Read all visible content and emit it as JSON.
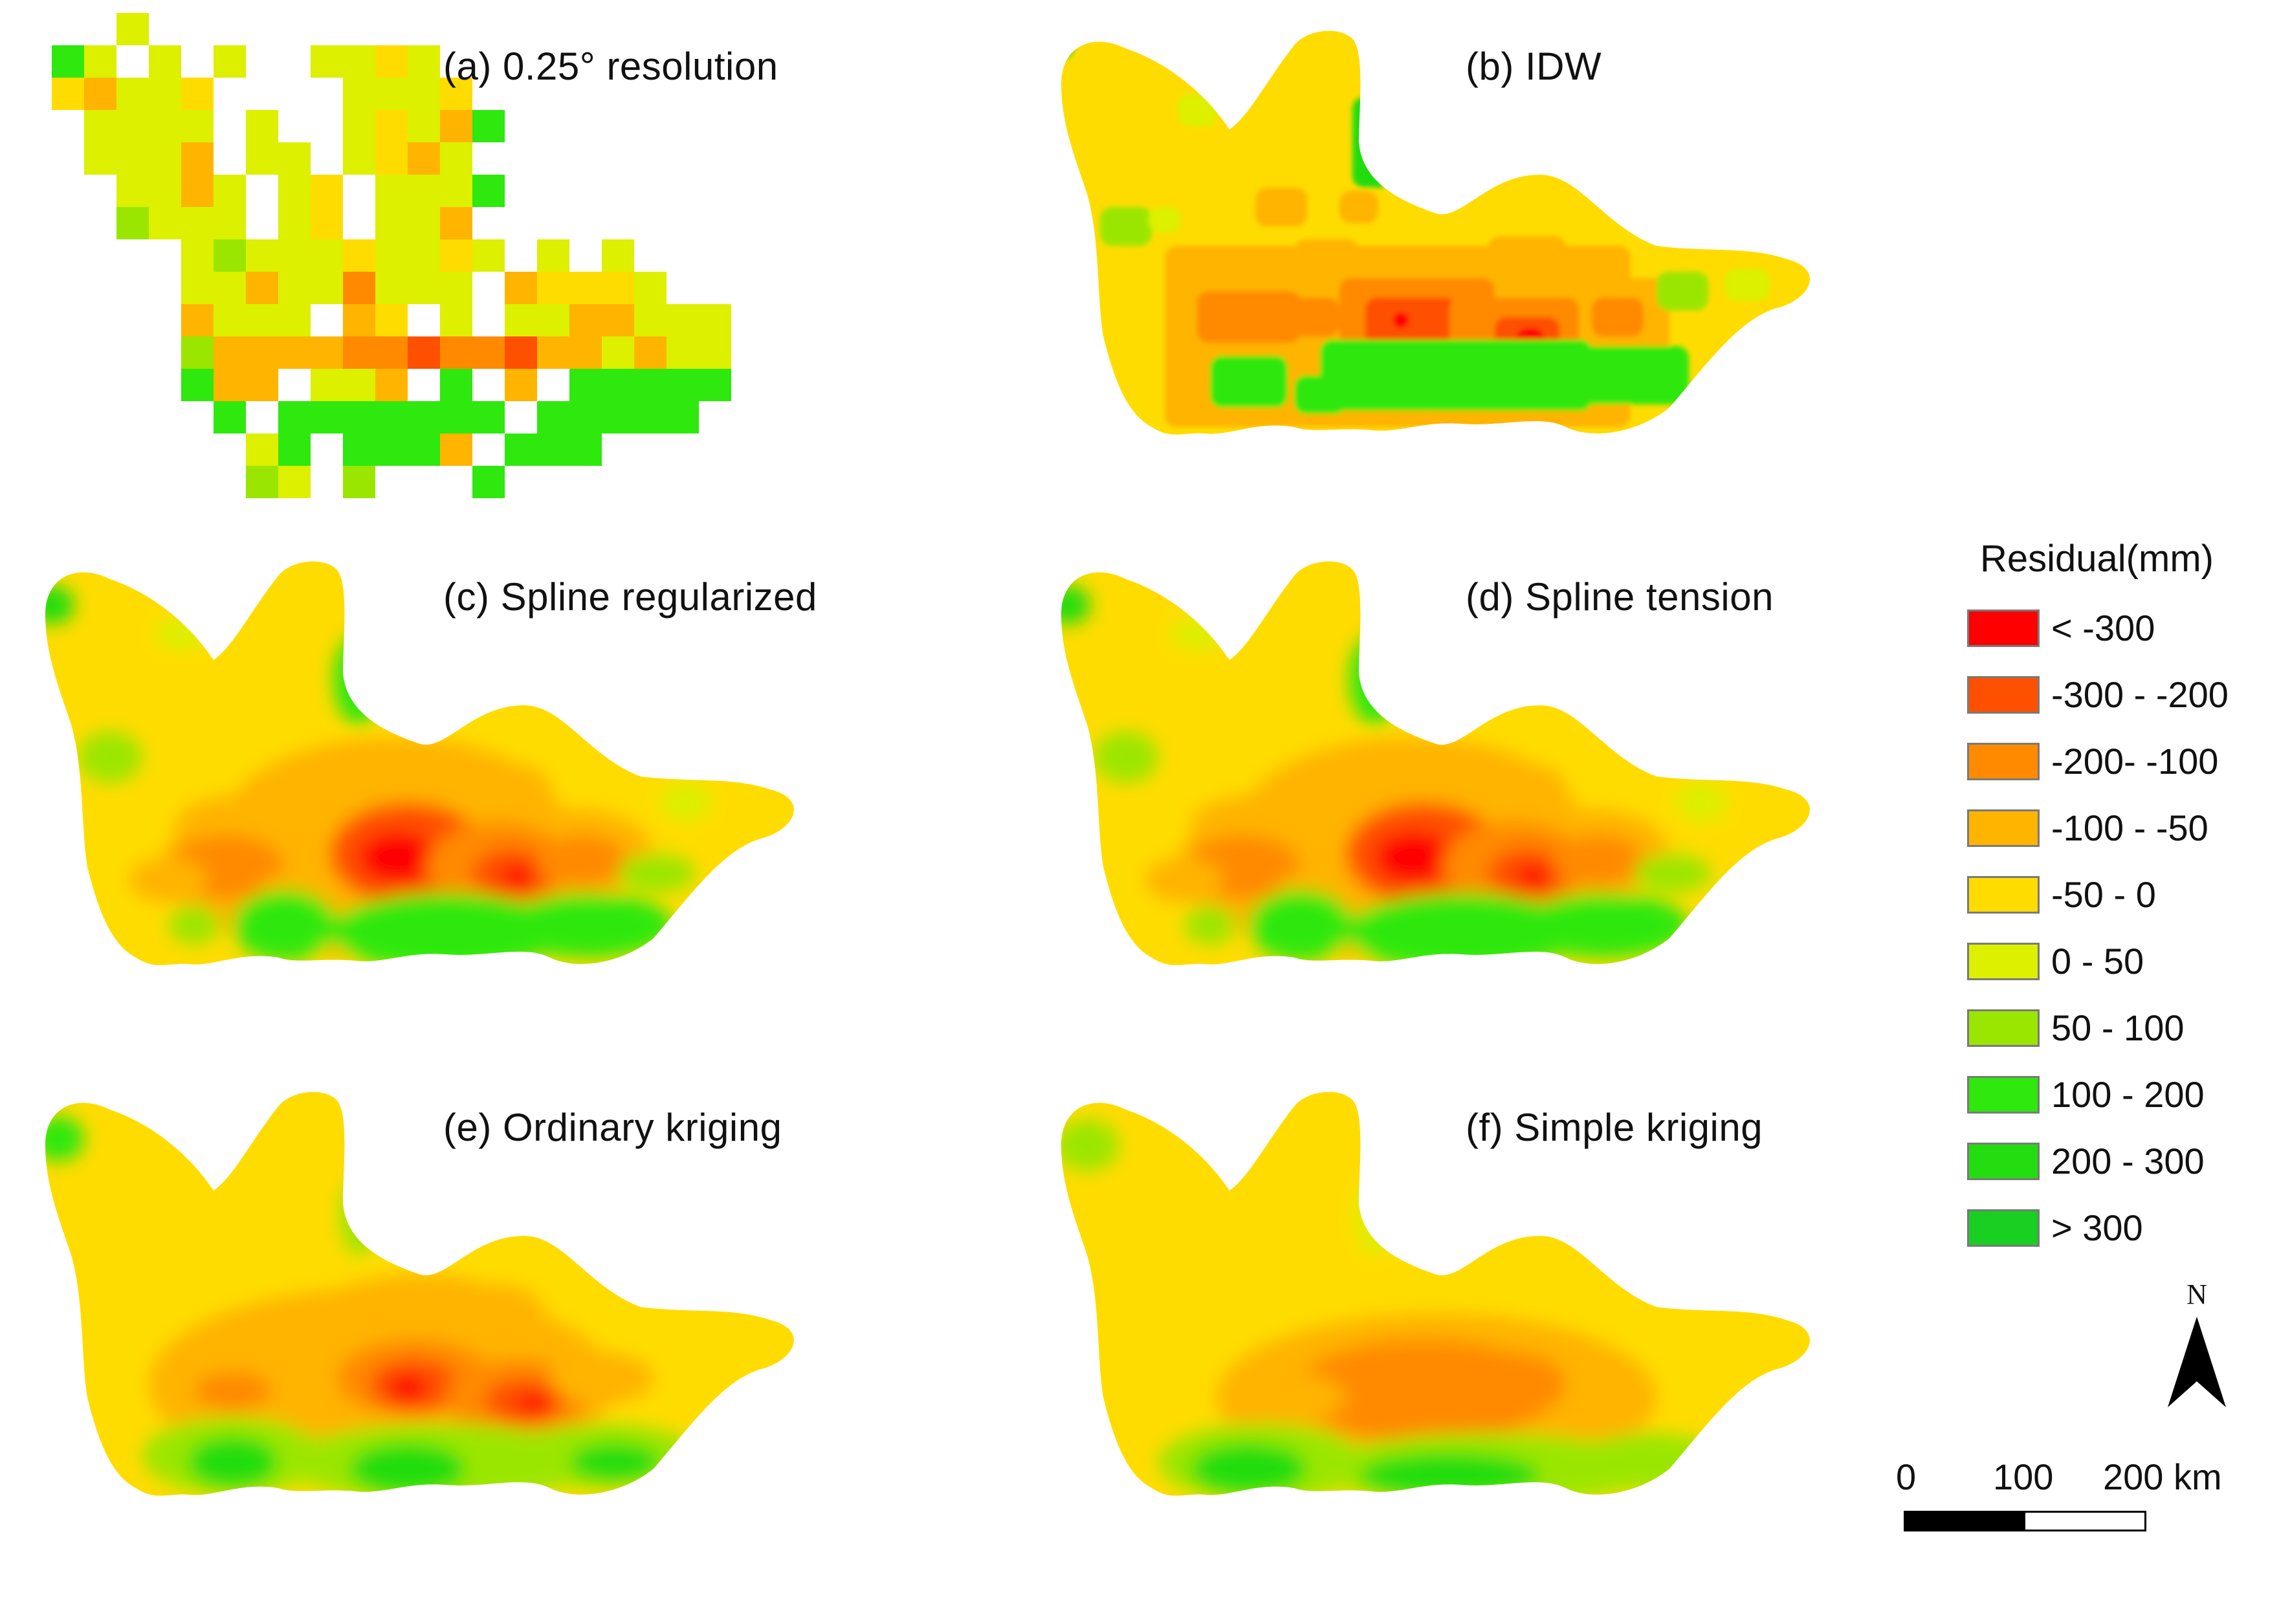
{
  "panels": [
    {
      "id": "a",
      "title": "(a) 0.25° resolution",
      "method": "grid"
    },
    {
      "id": "b",
      "title": "(b) IDW",
      "method": "idw"
    },
    {
      "id": "c",
      "title": "(c) Spline regularized",
      "method": "spline"
    },
    {
      "id": "d",
      "title": "(d) Spline tension",
      "method": "spline"
    },
    {
      "id": "e",
      "title": "(e) Ordinary kriging",
      "method": "kriging"
    },
    {
      "id": "f",
      "title": "(f) Simple kriging",
      "method": "kriging"
    }
  ],
  "legend": {
    "title": "Residual(mm)",
    "classes": [
      {
        "label": "< -300",
        "color": "#ff0000"
      },
      {
        "label": "-300 - -200",
        "color": "#ff5000"
      },
      {
        "label": "-200- -100",
        "color": "#ff8a00"
      },
      {
        "label": "-100 - -50",
        "color": "#ffb400"
      },
      {
        "label": "-50 - 0",
        "color": "#ffdc00"
      },
      {
        "label": "0 - 50",
        "color": "#dcf000"
      },
      {
        "label": "50 - 100",
        "color": "#9be600"
      },
      {
        "label": "100 - 200",
        "color": "#2ee80e"
      },
      {
        "label": "200 - 300",
        "color": "#24dd10"
      },
      {
        "label": "> 300",
        "color": "#18cf22"
      }
    ]
  },
  "north_arrow": {
    "label": "N"
  },
  "scale_bar": {
    "labels": [
      "0",
      "100",
      "200 km"
    ]
  }
}
